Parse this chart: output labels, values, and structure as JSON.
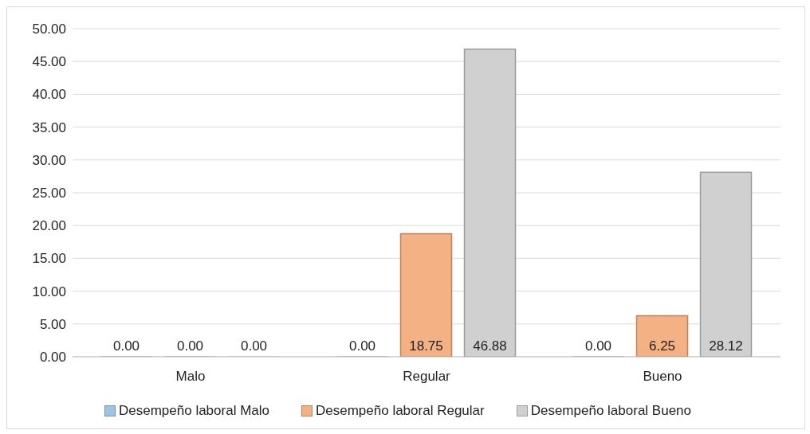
{
  "chart_data": {
    "type": "bar",
    "categories": [
      "Malo",
      "Regular",
      "Bueno"
    ],
    "series": [
      {
        "name": "Desempeño laboral Malo",
        "color": "#9dc3e6",
        "values": [
          0,
          0,
          0
        ],
        "value_labels": [
          "0.00",
          "0.00",
          "0.00"
        ]
      },
      {
        "name": "Desempeño laboral Regular",
        "color": "#f4b183",
        "values": [
          0,
          18.75,
          6.25
        ],
        "value_labels": [
          "0.00",
          "18.75",
          "6.25"
        ]
      },
      {
        "name": "Desempeño laboral Bueno",
        "color": "#d0d0d0",
        "values": [
          0,
          46.88,
          28.12
        ],
        "value_labels": [
          "0.00",
          "46.88",
          "28.12"
        ]
      }
    ],
    "ylim": [
      0,
      50
    ],
    "yticks": [
      {
        "value": 0,
        "label": "0.00"
      },
      {
        "value": 5,
        "label": "5.00"
      },
      {
        "value": 10,
        "label": "10.00"
      },
      {
        "value": 15,
        "label": "15.00"
      },
      {
        "value": 20,
        "label": "20.00"
      },
      {
        "value": 25,
        "label": "25.00"
      },
      {
        "value": 30,
        "label": "30.00"
      },
      {
        "value": 35,
        "label": "35.00"
      },
      {
        "value": 40,
        "label": "40.00"
      },
      {
        "value": 45,
        "label": "45.00"
      },
      {
        "value": 50,
        "label": "50.00"
      }
    ],
    "grid": "y",
    "legend": "bottom"
  }
}
